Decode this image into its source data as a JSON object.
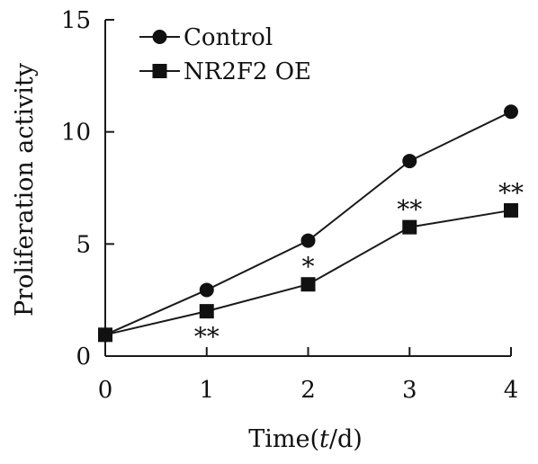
{
  "chart_data": {
    "type": "line",
    "xlabel": "Time(t/d)",
    "ylabel": "Proliferation activity",
    "x": [
      0,
      1,
      2,
      3,
      4
    ],
    "xticks": [
      "0",
      "1",
      "2",
      "3",
      "4"
    ],
    "yticks": [
      "0",
      "5",
      "10",
      "15"
    ],
    "xlim": [
      0,
      4
    ],
    "ylim": [
      0,
      15
    ],
    "legend_position": "top-left",
    "series": [
      {
        "name": "Control",
        "marker": "circle",
        "values": [
          0.95,
          2.95,
          5.15,
          8.7,
          10.9
        ]
      },
      {
        "name": "NR2F2 OE",
        "marker": "square",
        "values": [
          0.95,
          2.0,
          3.2,
          5.75,
          6.5
        ]
      }
    ],
    "annotations": [
      {
        "x": 1,
        "y": 2.0,
        "text": "**",
        "position": "below"
      },
      {
        "x": 2,
        "y": 3.2,
        "text": "*",
        "position": "above"
      },
      {
        "x": 3,
        "y": 5.75,
        "text": "**",
        "position": "above"
      },
      {
        "x": 4,
        "y": 6.5,
        "text": "**",
        "position": "above"
      }
    ],
    "colors": {
      "line": "#1a1a1a",
      "marker": "#111111"
    }
  }
}
